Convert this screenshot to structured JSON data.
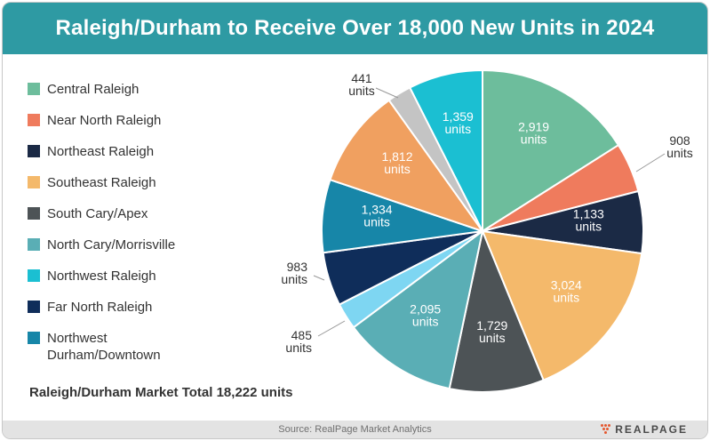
{
  "header": {
    "title": "Raleigh/Durham to Receive Over 18,000 New Units in 2024"
  },
  "legend_items": [
    {
      "label": "Central Raleigh",
      "color": "#6dbd9c"
    },
    {
      "label": "Near North Raleigh",
      "color": "#ef7b5d"
    },
    {
      "label": "Northeast Raleigh",
      "color": "#1b2a45"
    },
    {
      "label": "Southeast Raleigh",
      "color": "#f4b96b"
    },
    {
      "label": "South Cary/Apex",
      "color": "#4d5356"
    },
    {
      "label": "North Cary/Morrisville",
      "color": "#5aaeb5"
    },
    {
      "label": "Northwest Raleigh",
      "color": "#1bbfd2"
    },
    {
      "label": "Far North Raleigh",
      "color": "#0f2d5a"
    },
    {
      "label": "Northwest Durham/Downtown",
      "color": "#1786a8"
    }
  ],
  "total_text": "Raleigh/Durham Market Total 18,222 units",
  "footer": {
    "source": "Source: RealPage Market Analytics",
    "logo_text": "REALPAGE",
    "logo_color": "#e4572e"
  },
  "chart_data": {
    "type": "pie",
    "unit_label": "units",
    "slices": [
      {
        "value": 2919,
        "label": "2,919",
        "color": "#6dbd9c",
        "label_color": "#ffffff",
        "label_pos": "inside"
      },
      {
        "value": 908,
        "label": "908",
        "color": "#ef7b5d",
        "label_color": "#333333",
        "label_pos": "outside"
      },
      {
        "value": 1133,
        "label": "1,133",
        "color": "#1b2a45",
        "label_color": "#ffffff",
        "label_pos": "inside"
      },
      {
        "value": 3024,
        "label": "3,024",
        "color": "#f4b96b",
        "label_color": "#ffffff",
        "label_pos": "inside"
      },
      {
        "value": 1729,
        "label": "1,729",
        "color": "#4d5356",
        "label_color": "#ffffff",
        "label_pos": "inside"
      },
      {
        "value": 2095,
        "label": "2,095",
        "color": "#5aaeb5",
        "label_color": "#ffffff",
        "label_pos": "inside"
      },
      {
        "value": 485,
        "label": "485",
        "color": "#7ed6f2",
        "label_color": "#333333",
        "label_pos": "outside"
      },
      {
        "value": 983,
        "label": "983",
        "color": "#0f2d5a",
        "label_color": "#333333",
        "label_pos": "outside"
      },
      {
        "value": 1334,
        "label": "1,334",
        "color": "#1786a8",
        "label_color": "#ffffff",
        "label_pos": "inside"
      },
      {
        "value": 1812,
        "label": "1,812",
        "color": "#f0a060",
        "label_color": "#ffffff",
        "label_pos": "inside"
      },
      {
        "value": 441,
        "label": "441",
        "color": "#c4c4c4",
        "label_color": "#333333",
        "label_pos": "outside"
      },
      {
        "value": 1359,
        "label": "1,359",
        "color": "#1bbfd2",
        "label_color": "#ffffff",
        "label_pos": "inside"
      }
    ]
  }
}
